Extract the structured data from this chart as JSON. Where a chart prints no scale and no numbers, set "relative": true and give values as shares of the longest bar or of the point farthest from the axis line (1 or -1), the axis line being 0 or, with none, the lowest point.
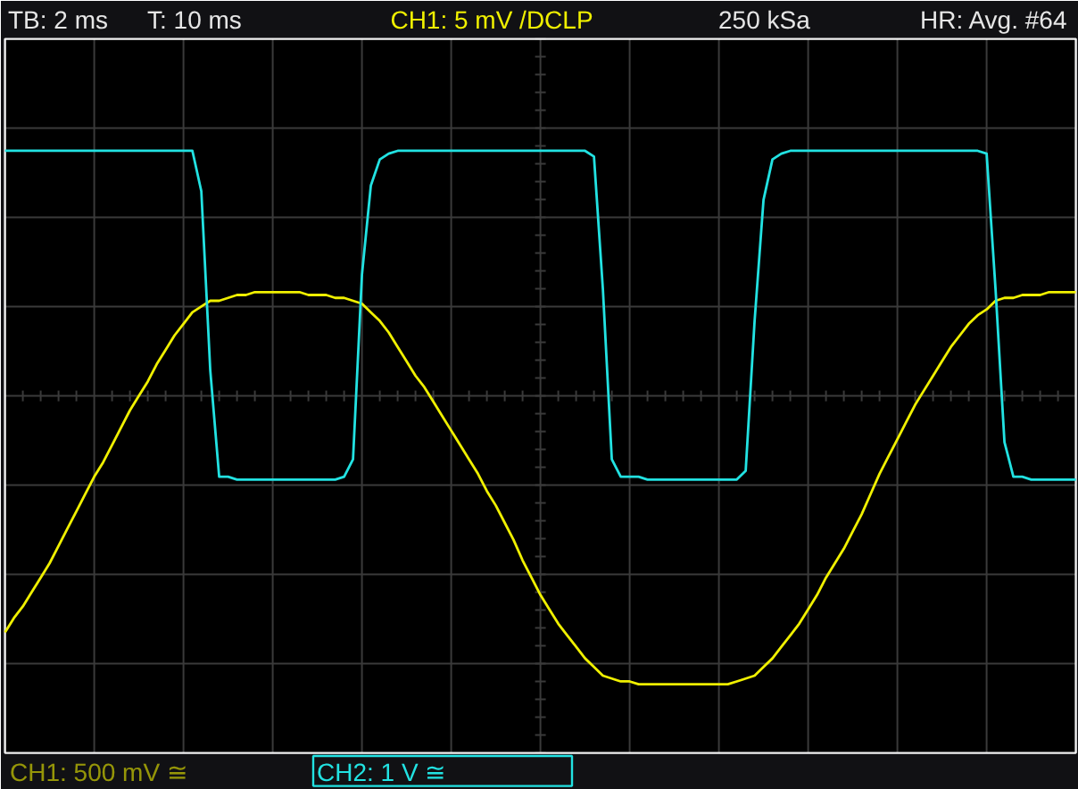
{
  "chart_data": {
    "type": "line",
    "relative": true,
    "categories": [
      null,
      null,
      null,
      null,
      null,
      null,
      null,
      null,
      null,
      null,
      null,
      null,
      null,
      null,
      null,
      null,
      null,
      null,
      null,
      null,
      null,
      null,
      null,
      null,
      null,
      null,
      null,
      null,
      null,
      null,
      null,
      null,
      null,
      null,
      null,
      null,
      null,
      null,
      null,
      null,
      null,
      null,
      null,
      null,
      null,
      null,
      null,
      null,
      null,
      null,
      null,
      null,
      null,
      null,
      null,
      null,
      null,
      null,
      null,
      null,
      null,
      null,
      null,
      null,
      null,
      null,
      null,
      null,
      null,
      null,
      null,
      null,
      null,
      null,
      null,
      null,
      null,
      null,
      null,
      null,
      null,
      null,
      null,
      null,
      null,
      null,
      null,
      null,
      null,
      null,
      null,
      null,
      null,
      null,
      null,
      null,
      null,
      null,
      null,
      null,
      null,
      null,
      null,
      null,
      null,
      null,
      null,
      null,
      null,
      null,
      null,
      null,
      null,
      null,
      null,
      null,
      null,
      null,
      null,
      null,
      null
    ],
    "series": [
      {
        "name": "CH1: 500 mV ≅",
        "color": "#f0f000",
        "values": [
          -0.82,
          -0.77,
          -0.73,
          -0.68,
          -0.63,
          -0.58,
          -0.52,
          -0.46,
          -0.4,
          -0.34,
          -0.28,
          -0.23,
          -0.17,
          -0.11,
          -0.05,
          0,
          0.05,
          0.11,
          0.16,
          0.21,
          0.25,
          0.29,
          0.31,
          0.33,
          0.33,
          0.34,
          0.35,
          0.35,
          0.36,
          0.36,
          0.36,
          0.36,
          0.36,
          0.36,
          0.35,
          0.35,
          0.35,
          0.34,
          0.34,
          0.33,
          0.32,
          0.29,
          0.26,
          0.22,
          0.17,
          0.12,
          0.07,
          0.03,
          -0.02,
          -0.07,
          -0.12,
          -0.17,
          -0.22,
          -0.27,
          -0.33,
          -0.38,
          -0.44,
          -0.5,
          -0.57,
          -0.63,
          -0.69,
          -0.74,
          -0.79,
          -0.83,
          -0.87,
          -0.91,
          -0.94,
          -0.97,
          -0.98,
          -0.99,
          -0.99,
          -1,
          -1,
          -1,
          -1,
          -1,
          -1,
          -1,
          -1,
          -1,
          -1,
          -1,
          -0.99,
          -0.98,
          -0.97,
          -0.94,
          -0.91,
          -0.87,
          -0.83,
          -0.79,
          -0.74,
          -0.69,
          -0.63,
          -0.58,
          -0.53,
          -0.47,
          -0.41,
          -0.34,
          -0.27,
          -0.21,
          -0.15,
          -0.09,
          -0.03,
          0.02,
          0.07,
          0.12,
          0.17,
          0.21,
          0.25,
          0.28,
          0.3,
          0.33,
          0.34,
          0.34,
          0.35,
          0.35,
          0.35,
          0.36,
          0.36,
          0.36,
          0.36
        ]
      },
      {
        "name": "CH2: 1 V ≅",
        "color": "#22e2e2",
        "values": [
          0.85,
          0.85,
          0.85,
          0.85,
          0.85,
          0.85,
          0.85,
          0.85,
          0.85,
          0.85,
          0.85,
          0.85,
          0.85,
          0.85,
          0.85,
          0.85,
          0.85,
          0.85,
          0.85,
          0.85,
          0.85,
          0.85,
          0.71,
          0.09,
          -0.28,
          -0.28,
          -0.29,
          -0.29,
          -0.29,
          -0.29,
          -0.29,
          -0.29,
          -0.29,
          -0.29,
          -0.29,
          -0.29,
          -0.29,
          -0.29,
          -0.28,
          -0.22,
          0.42,
          0.73,
          0.82,
          0.84,
          0.85,
          0.85,
          0.85,
          0.85,
          0.85,
          0.85,
          0.85,
          0.85,
          0.85,
          0.85,
          0.85,
          0.85,
          0.85,
          0.85,
          0.85,
          0.85,
          0.85,
          0.85,
          0.85,
          0.85,
          0.85,
          0.85,
          0.83,
          0.37,
          -0.22,
          -0.28,
          -0.28,
          -0.28,
          -0.29,
          -0.29,
          -0.29,
          -0.29,
          -0.29,
          -0.29,
          -0.29,
          -0.29,
          -0.29,
          -0.29,
          -0.29,
          -0.26,
          0.26,
          0.68,
          0.82,
          0.84,
          0.85,
          0.85,
          0.85,
          0.85,
          0.85,
          0.85,
          0.85,
          0.85,
          0.85,
          0.85,
          0.85,
          0.85,
          0.85,
          0.85,
          0.85,
          0.85,
          0.85,
          0.85,
          0.85,
          0.85,
          0.85,
          0.85,
          0.84,
          0.37,
          -0.16,
          -0.28,
          -0.28,
          -0.29,
          -0.29,
          -0.29,
          -0.29,
          -0.29,
          -0.29
        ]
      }
    ],
    "annotations": [
      "TB: 2 ms",
      "T: 10 ms",
      "CH1: 5 mV /DCLP",
      "250 kSa",
      "HR: Avg. #64"
    ],
    "grid": true,
    "legend": "bottom"
  }
}
